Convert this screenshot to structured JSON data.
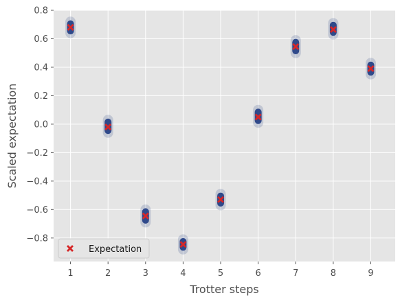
{
  "chart_data": {
    "type": "scatter",
    "xlabel": "Trotter steps",
    "ylabel": "Scaled expectation",
    "xlim": [
      0.55,
      9.65
    ],
    "ylim": [
      -0.965,
      0.8
    ],
    "xticks": [
      1,
      2,
      3,
      4,
      5,
      6,
      7,
      8,
      9
    ],
    "yticks": [
      -0.8,
      -0.6,
      -0.4,
      -0.2,
      0.0,
      0.2,
      0.4,
      0.6,
      0.8
    ],
    "ytick_labels": [
      "−0.8",
      "−0.6",
      "−0.4",
      "−0.2",
      "0.0",
      "0.2",
      "0.4",
      "0.6",
      "0.8"
    ],
    "grid": true,
    "legend_position": "lower-left",
    "series": [
      {
        "name": "",
        "kind": "samples",
        "color": "#1f3b82",
        "x": [
          1,
          2,
          3,
          4,
          5,
          6,
          7,
          8,
          9
        ],
        "y_min": [
          0.65,
          -0.05,
          -0.68,
          -0.87,
          -0.56,
          0.02,
          0.51,
          0.64,
          0.36
        ],
        "y_max": [
          0.71,
          0.02,
          -0.61,
          -0.82,
          -0.5,
          0.09,
          0.58,
          0.7,
          0.42
        ]
      },
      {
        "name": "Expectation",
        "kind": "marker",
        "marker": "x",
        "color": "#d62728",
        "x": [
          1,
          2,
          3,
          4,
          5,
          6,
          7,
          8,
          9
        ],
        "y": [
          0.68,
          -0.02,
          -0.645,
          -0.845,
          -0.53,
          0.05,
          0.545,
          0.665,
          0.39
        ]
      }
    ]
  },
  "colors": {
    "plot_background": "#e5e5e5",
    "grid": "#ffffff",
    "tick_text": "#4d4d4d"
  }
}
